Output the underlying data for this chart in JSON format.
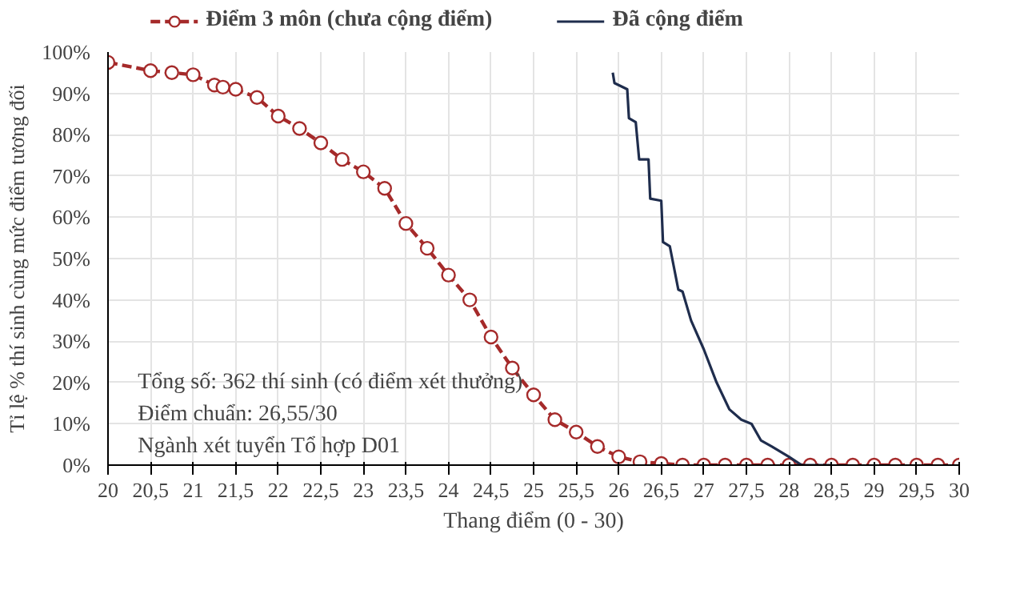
{
  "chart_data": {
    "type": "line",
    "xlabel": "Thang điểm (0 - 30)",
    "ylabel": "Tỉ lệ % thí sinh cùng mức điểm tương đối",
    "xlim": [
      20,
      30
    ],
    "ylim": [
      0,
      100
    ],
    "xticks": [
      20,
      {
        "value": 20.5,
        "label": "20,5"
      },
      21,
      {
        "value": 21.5,
        "label": "21,5"
      },
      22,
      {
        "value": 22.5,
        "label": "22,5"
      },
      23,
      {
        "value": 23.5,
        "label": "23,5"
      },
      24,
      {
        "value": 24.5,
        "label": "24,5"
      },
      25,
      {
        "value": 25.5,
        "label": "25,5"
      },
      26,
      {
        "value": 26.5,
        "label": "26,5"
      },
      27,
      {
        "value": 27.5,
        "label": "27,5"
      },
      28,
      {
        "value": 28.5,
        "label": "28,5"
      },
      29,
      {
        "value": 29.5,
        "label": "29,5"
      },
      30
    ],
    "yticks": [
      {
        "value": 0,
        "label": "0%"
      },
      {
        "value": 10,
        "label": "10%"
      },
      {
        "value": 20,
        "label": "20%"
      },
      {
        "value": 30,
        "label": "30%"
      },
      {
        "value": 40,
        "label": "40%"
      },
      {
        "value": 50,
        "label": "50%"
      },
      {
        "value": 60,
        "label": "60%"
      },
      {
        "value": 70,
        "label": "70%"
      },
      {
        "value": 80,
        "label": "80%"
      },
      {
        "value": 90,
        "label": "90%"
      },
      {
        "value": 100,
        "label": "100%"
      }
    ],
    "grid": true,
    "legend": "top",
    "series": [
      {
        "name": "Điểm 3 môn (chưa cộng điểm)",
        "color": "#a52a2a",
        "marker": "circle",
        "line_style": "dashed",
        "x": [
          20,
          20.5,
          20.75,
          21,
          21.25,
          21.35,
          21.5,
          21.75,
          22,
          22.25,
          22.5,
          22.75,
          23,
          23.25,
          23.5,
          23.75,
          24,
          24.25,
          24.5,
          24.75,
          25,
          25.25,
          25.5,
          25.75,
          26,
          26.25,
          26.5,
          26.75,
          27,
          27.25,
          27.5,
          27.75,
          28,
          28.25,
          28.5,
          28.75,
          29,
          29.25,
          29.5,
          29.75,
          30
        ],
        "values": [
          97.5,
          95.5,
          95,
          94.5,
          92,
          91.5,
          91,
          89,
          84.5,
          81.5,
          78,
          74,
          71,
          67,
          58.5,
          52.5,
          46,
          40,
          31,
          23.5,
          17,
          11,
          8,
          4.5,
          2,
          0.8,
          0.4,
          0,
          0,
          0,
          0,
          0,
          0,
          0,
          0,
          0,
          0,
          0,
          0,
          0,
          0
        ]
      },
      {
        "name": "Đã cộng điểm",
        "color": "#1f2d4d",
        "marker": "none",
        "line_style": "solid",
        "x": [
          25.93,
          25.95,
          26.1,
          26.12,
          26.2,
          26.24,
          26.35,
          26.37,
          26.5,
          26.52,
          26.6,
          26.7,
          26.75,
          26.85,
          27,
          27.15,
          27.3,
          27.44,
          27.56,
          27.67,
          27.8,
          28,
          28.15,
          28.5
        ],
        "values": [
          95,
          92.5,
          91,
          84,
          83,
          74,
          74,
          64.5,
          64,
          54,
          53,
          42.5,
          42,
          35,
          28,
          20,
          13.5,
          11,
          10,
          6,
          4.5,
          2,
          0,
          0
        ]
      }
    ],
    "annotations": [
      "Tổng số: 362 thí sinh  (có điểm xét thưởng)",
      "Điểm chuẩn: 26,55/30",
      "Ngành xét tuyển Tổ hợp D01"
    ]
  }
}
